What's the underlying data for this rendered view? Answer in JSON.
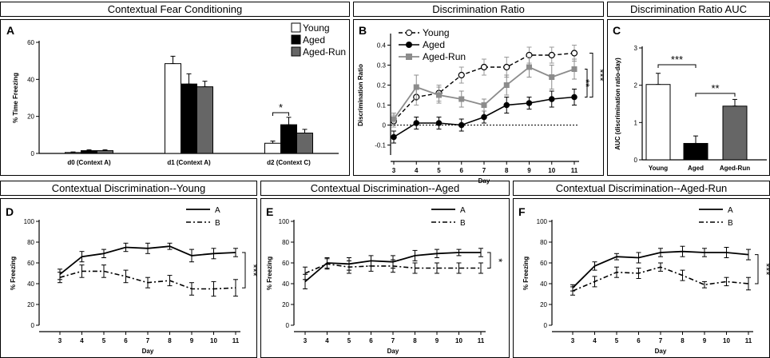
{
  "headers": {
    "a": "Contextual Fear Conditioning",
    "b": "Discrimination Ratio",
    "c": "Discrimination Ratio AUC",
    "d": "Contextual Discrimination--Young",
    "e": "Contextual Discrimination--Aged",
    "f": "Contextual Discrimination--Aged-Run"
  },
  "colors": {
    "young": "#ffffff",
    "aged": "#000000",
    "aged_run": "#666666",
    "run_line": "#8c8c8c"
  },
  "chart_data": [
    {
      "id": "A",
      "panel_label": "A",
      "type": "bar",
      "title": "Contextual Fear Conditioning",
      "ylabel": "% Time Freezing",
      "ylim": [
        0,
        60
      ],
      "yticks": [
        0,
        20,
        40,
        60
      ],
      "categories": [
        "d0 (Context A)",
        "d1 (Context A)",
        "d2 (Context C)"
      ],
      "series": [
        {
          "name": "Young",
          "values": [
            0.5,
            48.5,
            5.5
          ],
          "errors": [
            0.3,
            4,
            1.2
          ]
        },
        {
          "name": "Aged",
          "values": [
            1.5,
            37.5,
            15.5
          ],
          "errors": [
            0.5,
            5.5,
            4
          ]
        },
        {
          "name": "Aged-Run",
          "values": [
            1.5,
            36,
            11
          ],
          "errors": [
            0.5,
            3,
            2
          ]
        }
      ],
      "legend": [
        "Young",
        "Aged",
        "Aged-Run"
      ],
      "annotations": [
        {
          "text": "*",
          "between": [
            "Young",
            "Aged"
          ],
          "category": "d2 (Context C)"
        }
      ]
    },
    {
      "id": "B",
      "panel_label": "B",
      "type": "line",
      "title": "Discrimination Ratio",
      "xlabel": "Day",
      "ylabel": "Discrimination Ratio",
      "x": [
        3,
        4,
        5,
        6,
        7,
        8,
        9,
        10,
        11
      ],
      "ylim": [
        -0.15,
        0.45
      ],
      "yticks": [
        -0.1,
        0,
        0.1,
        0.2,
        0.3,
        0.4
      ],
      "ytick_labels": [
        "-0.1",
        "0",
        "0.1",
        "0.2",
        "0.3",
        "0.4"
      ],
      "series": [
        {
          "name": "Young",
          "values": [
            0.02,
            0.14,
            0.16,
            0.25,
            0.29,
            0.29,
            0.35,
            0.35,
            0.36
          ],
          "errors": [
            0.03,
            0.04,
            0.04,
            0.04,
            0.04,
            0.05,
            0.04,
            0.04,
            0.04
          ]
        },
        {
          "name": "Aged",
          "values": [
            -0.06,
            0.01,
            0.01,
            0.0,
            0.04,
            0.1,
            0.11,
            0.13,
            0.14
          ],
          "errors": [
            0.03,
            0.03,
            0.03,
            0.03,
            0.03,
            0.04,
            0.03,
            0.04,
            0.04
          ]
        },
        {
          "name": "Aged-Run",
          "values": [
            0.03,
            0.19,
            0.15,
            0.13,
            0.1,
            0.2,
            0.29,
            0.24,
            0.28
          ],
          "errors": [
            0.03,
            0.06,
            0.04,
            0.04,
            0.03,
            0.05,
            0.05,
            0.06,
            0.05
          ]
        }
      ],
      "legend": [
        "Young",
        "Aged",
        "Aged-Run"
      ],
      "annotations": [
        "**",
        "***"
      ]
    },
    {
      "id": "C",
      "panel_label": "C",
      "type": "bar",
      "title": "Discrimination Ratio AUC",
      "ylabel": "AUC (discrimination ratio-day)",
      "ylim": [
        0,
        3
      ],
      "yticks": [
        0,
        1,
        2,
        3
      ],
      "categories": [
        "Young",
        "Aged",
        "Aged-Run"
      ],
      "values": [
        2.02,
        0.44,
        1.44
      ],
      "errors": [
        0.3,
        0.2,
        0.18
      ],
      "annotations": [
        {
          "text": "***",
          "between": [
            "Young",
            "Aged"
          ]
        },
        {
          "text": "**",
          "between": [
            "Aged",
            "Aged-Run"
          ]
        }
      ]
    },
    {
      "id": "D",
      "panel_label": "D",
      "type": "line",
      "title": "Contextual Discrimination--Young",
      "xlabel": "Day",
      "ylabel": "% Freezing",
      "x": [
        3,
        4,
        5,
        6,
        7,
        8,
        9,
        10,
        11
      ],
      "ylim": [
        0,
        100
      ],
      "yticks": [
        0,
        20,
        40,
        60,
        80,
        100
      ],
      "series": [
        {
          "name": "A",
          "values": [
            49,
            66,
            69,
            75,
            74,
            76,
            67,
            69,
            70
          ],
          "errors": [
            5,
            5,
            4,
            4,
            5,
            3,
            6,
            5,
            4
          ]
        },
        {
          "name": "B",
          "values": [
            46,
            52,
            52,
            47,
            41,
            43,
            35,
            35,
            36
          ],
          "errors": [
            5,
            6,
            6,
            6,
            5,
            5,
            6,
            7,
            8
          ]
        }
      ],
      "legend": [
        "A",
        "B"
      ],
      "annotations": [
        "***"
      ]
    },
    {
      "id": "E",
      "panel_label": "E",
      "type": "line",
      "title": "Contextual Discrimination--Aged",
      "xlabel": "Day",
      "ylabel": "% Freezing",
      "x": [
        3,
        4,
        5,
        6,
        7,
        8,
        9,
        10,
        11
      ],
      "ylim": [
        0,
        100
      ],
      "yticks": [
        0,
        20,
        40,
        60,
        80,
        100
      ],
      "series": [
        {
          "name": "A",
          "values": [
            42,
            60,
            59,
            62,
            61,
            67,
            69,
            70,
            70
          ],
          "errors": [
            7,
            5,
            6,
            5,
            6,
            5,
            4,
            3,
            4
          ]
        },
        {
          "name": "B",
          "values": [
            50,
            59,
            56,
            57,
            57,
            55,
            55,
            55,
            55
          ],
          "errors": [
            6,
            5,
            6,
            5,
            6,
            5,
            5,
            5,
            5
          ]
        }
      ],
      "legend": [
        "A",
        "B"
      ],
      "annotations": [
        "*"
      ]
    },
    {
      "id": "F",
      "panel_label": "F",
      "type": "line",
      "title": "Contextual Discrimination--Aged-Run",
      "xlabel": "Day",
      "ylabel": "% Freezing",
      "x": [
        3,
        4,
        5,
        6,
        7,
        8,
        9,
        10,
        11
      ],
      "ylim": [
        0,
        100
      ],
      "yticks": [
        0,
        20,
        40,
        60,
        80,
        100
      ],
      "series": [
        {
          "name": "A",
          "values": [
            36,
            57,
            66,
            65,
            70,
            71,
            70,
            70,
            68
          ],
          "errors": [
            3,
            4,
            3,
            5,
            4,
            5,
            4,
            5,
            5
          ]
        },
        {
          "name": "B",
          "values": [
            33,
            42,
            51,
            50,
            56,
            48,
            39,
            42,
            40
          ],
          "errors": [
            4,
            5,
            5,
            5,
            4,
            5,
            3,
            4,
            6
          ]
        }
      ],
      "legend": [
        "A",
        "B"
      ],
      "annotations": [
        "***"
      ]
    }
  ]
}
